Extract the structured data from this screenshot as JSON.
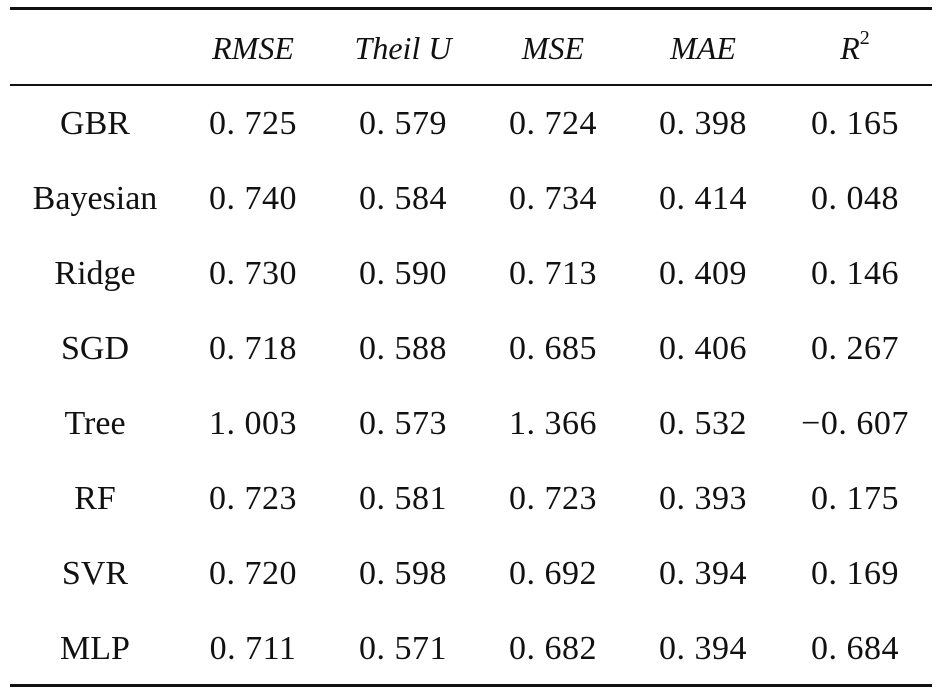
{
  "table": {
    "headers": [
      "",
      "RMSE",
      "Theil U",
      "MSE",
      "MAE",
      "R"
    ],
    "header_superscript": "2",
    "rows": [
      {
        "model": "GBR",
        "values": [
          "0. 725",
          "0. 579",
          "0. 724",
          "0. 398",
          "0. 165"
        ]
      },
      {
        "model": "Bayesian",
        "values": [
          "0. 740",
          "0. 584",
          "0. 734",
          "0. 414",
          "0. 048"
        ]
      },
      {
        "model": "Ridge",
        "values": [
          "0. 730",
          "0. 590",
          "0. 713",
          "0. 409",
          "0. 146"
        ]
      },
      {
        "model": "SGD",
        "values": [
          "0. 718",
          "0. 588",
          "0. 685",
          "0. 406",
          "0. 267"
        ]
      },
      {
        "model": "Tree",
        "values": [
          "1. 003",
          "0. 573",
          "1. 366",
          "0. 532",
          "−0. 607"
        ]
      },
      {
        "model": "RF",
        "values": [
          "0. 723",
          "0. 581",
          "0. 723",
          "0. 393",
          "0. 175"
        ]
      },
      {
        "model": "SVR",
        "values": [
          "0. 720",
          "0. 598",
          "0. 692",
          "0. 394",
          "0. 169"
        ]
      },
      {
        "model": "MLP",
        "values": [
          "0. 711",
          "0. 571",
          "0. 682",
          "0. 394",
          "0. 684"
        ]
      }
    ]
  }
}
